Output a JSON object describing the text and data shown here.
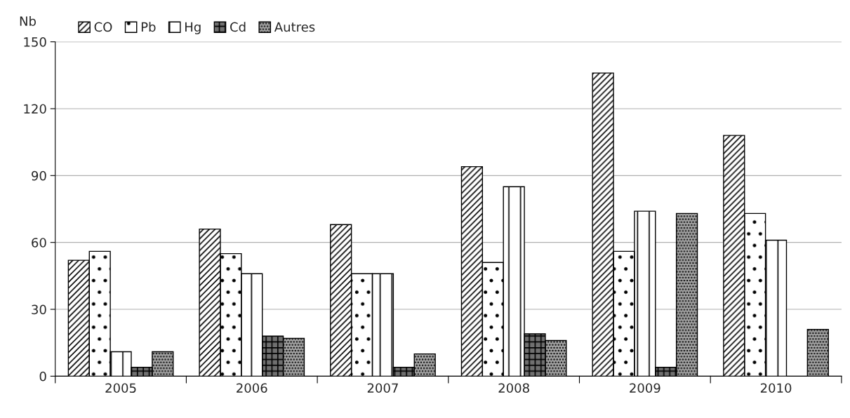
{
  "chart_data": {
    "type": "bar",
    "ylabel": "Nb",
    "categories": [
      "2005",
      "2006",
      "2007",
      "2008",
      "2009",
      "2010"
    ],
    "series": [
      {
        "name": "CO",
        "color": "#ffffff",
        "values": [
          52,
          66,
          68,
          94,
          136,
          108
        ]
      },
      {
        "name": "Pb",
        "color": "#ffffff",
        "values": [
          56,
          55,
          46,
          51,
          56,
          73
        ]
      },
      {
        "name": "Hg",
        "color": "#ffffff",
        "values": [
          11,
          46,
          46,
          85,
          74,
          61
        ]
      },
      {
        "name": "Cd",
        "color": "#707070",
        "values": [
          4,
          18,
          4,
          19,
          4,
          null
        ]
      },
      {
        "name": "Autres",
        "color": "#a6a6a6",
        "values": [
          11,
          17,
          10,
          16,
          73,
          21
        ]
      }
    ],
    "ylim": [
      0,
      150
    ],
    "yticks": [
      0,
      30,
      60,
      90,
      120,
      150
    ],
    "grid": "y",
    "legend": "top left"
  }
}
